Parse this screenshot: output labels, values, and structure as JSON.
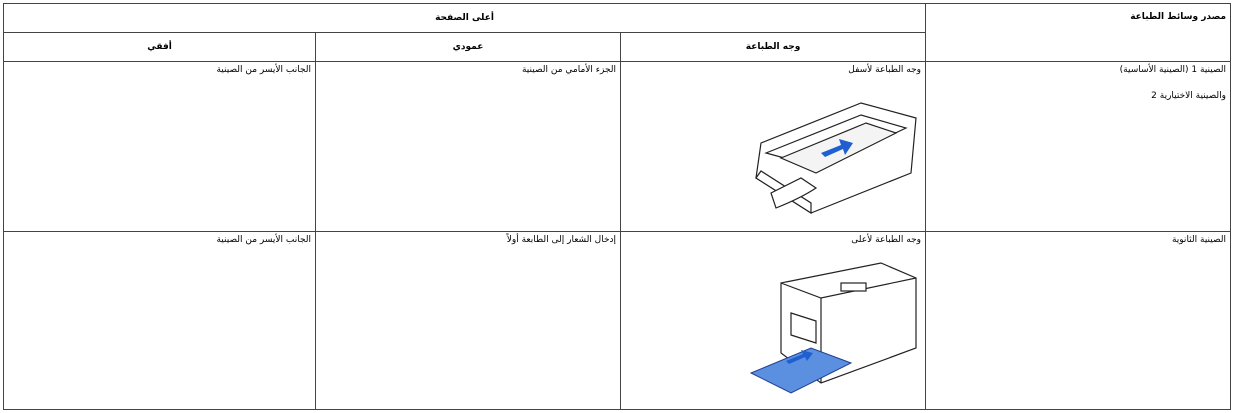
{
  "header": {
    "source": "مصدر وسائط الطباعة",
    "top_of_page": "أعلى الصفحة",
    "columns": [
      "وجه الطباعة",
      "عمودي",
      "أفقي"
    ]
  },
  "rows": [
    {
      "source": [
        "الصينية 1 (الصينية الأساسية)",
        "والصينية الاختيارية 2"
      ],
      "print_side": "وجه الطباعة لأسفل",
      "portrait": "الجزء الأمامي من الصينية",
      "landscape": "الجانب الأيسر من الصينية"
    },
    {
      "source": [
        "الصينية الثانوية"
      ],
      "print_side": "وجه الطباعة لأعلى",
      "portrait": "إدخال الشعار إلى الطابعة أولاً",
      "landscape": "الجانب الأيسر من الصينية"
    }
  ]
}
